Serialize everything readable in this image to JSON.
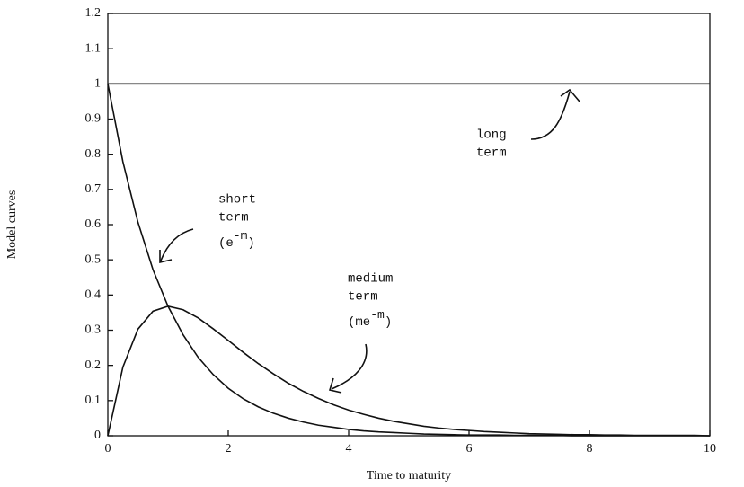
{
  "chart_data": {
    "type": "line",
    "x_label": "Time to maturity",
    "y_label": "Model curves",
    "xlim": [
      0,
      10
    ],
    "ylim": [
      0,
      1.2
    ],
    "xticks": [
      0,
      2,
      4,
      6,
      8,
      10
    ],
    "yticks": [
      0,
      0.1,
      0.2,
      0.3,
      0.4,
      0.5,
      0.6,
      0.7,
      0.8,
      0.9,
      1,
      1.1,
      1.2
    ],
    "x": [
      0,
      0.25,
      0.5,
      0.75,
      1,
      1.25,
      1.5,
      1.75,
      2,
      2.25,
      2.5,
      2.75,
      3,
      3.25,
      3.5,
      3.75,
      4,
      4.25,
      4.5,
      4.75,
      5,
      5.25,
      5.5,
      5.75,
      6,
      6.25,
      6.5,
      6.75,
      7,
      7.25,
      7.5,
      7.75,
      8,
      8.25,
      8.5,
      8.75,
      9,
      9.25,
      9.5,
      9.75,
      10
    ],
    "series": [
      {
        "color": "#111111",
        "values": [
          1,
          1,
          1,
          1,
          1,
          1,
          1,
          1,
          1,
          1,
          1,
          1,
          1,
          1,
          1,
          1,
          1,
          1,
          1,
          1,
          1,
          1,
          1,
          1,
          1,
          1,
          1,
          1,
          1,
          1,
          1,
          1,
          1,
          1,
          1,
          1,
          1,
          1,
          1,
          1,
          1
        ]
      },
      {
        "color": "#111111",
        "values": [
          1,
          0.779,
          0.607,
          0.472,
          0.368,
          0.287,
          0.223,
          0.174,
          0.135,
          0.105,
          0.082,
          0.064,
          0.05,
          0.039,
          0.03,
          0.024,
          0.018,
          0.014,
          0.011,
          0.009,
          0.007,
          0.005,
          0.004,
          0.003,
          0.002,
          0.002,
          0.002,
          0.001,
          0.001,
          0.001,
          0.001,
          0,
          0,
          0,
          0,
          0,
          0,
          0,
          0,
          0,
          0
        ]
      },
      {
        "color": "#111111",
        "values": [
          0,
          0.195,
          0.303,
          0.354,
          0.368,
          0.358,
          0.335,
          0.304,
          0.271,
          0.237,
          0.205,
          0.176,
          0.149,
          0.126,
          0.106,
          0.088,
          0.073,
          0.061,
          0.05,
          0.041,
          0.034,
          0.027,
          0.022,
          0.018,
          0.015,
          0.012,
          0.01,
          0.008,
          0.006,
          0.005,
          0.004,
          0.003,
          0.003,
          0.002,
          0.002,
          0.001,
          0.001,
          0.001,
          0.001,
          0.001,
          0
        ]
      }
    ],
    "annotations": [
      {
        "lines": [
          "long",
          "term"
        ]
      },
      {
        "lines": [
          "short",
          "term"
        ],
        "formula": [
          "(e",
          "-m",
          ")"
        ]
      },
      {
        "lines": [
          "medium",
          "term"
        ],
        "formula": [
          "(me",
          "-m",
          ")"
        ]
      }
    ]
  }
}
